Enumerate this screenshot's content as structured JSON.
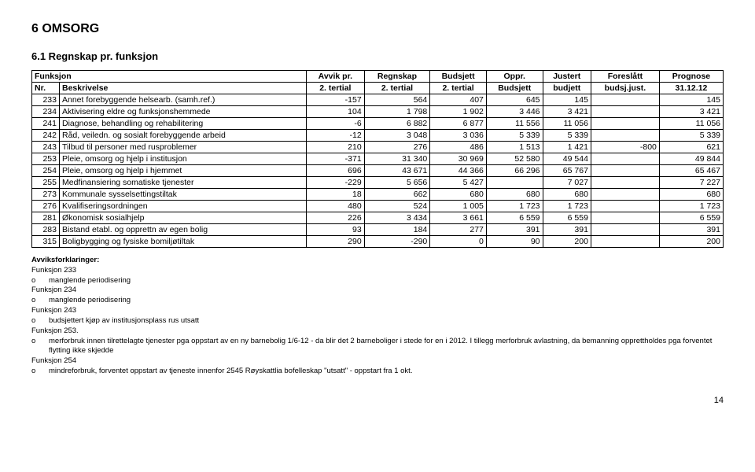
{
  "heading": "6  OMSORG",
  "subheading": "6.1  Regnskap pr. funksjon",
  "page_number": "14",
  "table": {
    "header": {
      "r1": [
        "Funksjon",
        "Avvik pr.",
        "Regnskap",
        "Budsjett",
        "Oppr.",
        "Justert",
        "Foreslått",
        "Prognose"
      ],
      "r2": [
        "Nr.",
        "Beskrivelse",
        "2. tertial",
        "2. tertial",
        "2. tertial",
        "Budsjett",
        "budjett",
        "budsj.just.",
        "31.12.12"
      ]
    },
    "rows": [
      {
        "nr": "233",
        "desc": "Annet forebyggende helsearb. (samh.ref.)",
        "v": [
          "-157",
          "564",
          "407",
          "645",
          "145",
          "",
          "145"
        ]
      },
      {
        "nr": "234",
        "desc": "Aktivisering eldre og funksjonshemmede",
        "v": [
          "104",
          "1 798",
          "1 902",
          "3 446",
          "3 421",
          "",
          "3 421"
        ]
      },
      {
        "nr": "241",
        "desc": "Diagnose, behandling og rehabilitering",
        "v": [
          "-6",
          "6 882",
          "6 877",
          "11 556",
          "11 056",
          "",
          "11 056"
        ]
      },
      {
        "nr": "242",
        "desc": "Råd, veiledn. og sosialt forebyggende arbeid",
        "v": [
          "-12",
          "3 048",
          "3 036",
          "5 339",
          "5 339",
          "",
          "5 339"
        ]
      },
      {
        "nr": "243",
        "desc": "Tilbud til personer med rusproblemer",
        "v": [
          "210",
          "276",
          "486",
          "1 513",
          "1 421",
          "-800",
          "621"
        ]
      },
      {
        "nr": "253",
        "desc": "Pleie, omsorg og hjelp i institusjon",
        "v": [
          "-371",
          "31 340",
          "30 969",
          "52 580",
          "49 544",
          "",
          "49 844"
        ]
      },
      {
        "nr": "254",
        "desc": "Pleie, omsorg og hjelp i hjemmet",
        "v": [
          "696",
          "43 671",
          "44 366",
          "66 296",
          "65 767",
          "",
          "65 467"
        ]
      },
      {
        "nr": "255",
        "desc": "Medfinansiering somatiske tjenester",
        "v": [
          "-229",
          "5 656",
          "5 427",
          "",
          "7 027",
          "",
          "7 227"
        ]
      },
      {
        "nr": "273",
        "desc": "Kommunale sysselsettingstiltak",
        "v": [
          "18",
          "662",
          "680",
          "680",
          "680",
          "",
          "680"
        ]
      },
      {
        "nr": "276",
        "desc": "Kvalifiseringsordningen",
        "v": [
          "480",
          "524",
          "1 005",
          "1 723",
          "1 723",
          "",
          "1 723"
        ]
      },
      {
        "nr": "281",
        "desc": "Økonomisk sosialhjelp",
        "v": [
          "226",
          "3 434",
          "3 661",
          "6 559",
          "6 559",
          "",
          "6 559"
        ]
      },
      {
        "nr": "283",
        "desc": "Bistand etabl. og opprettn av egen bolig",
        "v": [
          "93",
          "184",
          "277",
          "391",
          "391",
          "",
          "391"
        ]
      },
      {
        "nr": "315",
        "desc": "Boligbygging og fysiske bomiljøtiltak",
        "v": [
          "290",
          "-290",
          "0",
          "90",
          "200",
          "",
          "200"
        ]
      }
    ]
  },
  "notes": {
    "title": "Avviksforklaringer:",
    "items": [
      {
        "head": "Funksjon 233",
        "bullet": "o",
        "text": "manglende periodisering"
      },
      {
        "head": "Funksjon 234",
        "bullet": "o",
        "text": "manglende periodisering"
      },
      {
        "head": "Funksjon 243",
        "bullet": "o",
        "text": "budsjettert kjøp av institusjonsplass rus utsatt"
      },
      {
        "head": "Funksjon 253.",
        "bullet": "o",
        "text": "merforbruk innen tilrettelagte tjenester pga oppstart av en ny barnebolig 1/6-12 - da blir det 2 barneboliger i stede for en i 2012. I tillegg merforbruk avlastning, da bemanning opprettholdes pga forventet flytting ikke skjedde"
      },
      {
        "head": "Funksjon 254",
        "bullet": "o",
        "text": "mindreforbruk, forventet oppstart av tjeneste innenfor 2545 Røyskattlia bofelleskap \"utsatt\" - oppstart fra 1 okt."
      }
    ]
  }
}
